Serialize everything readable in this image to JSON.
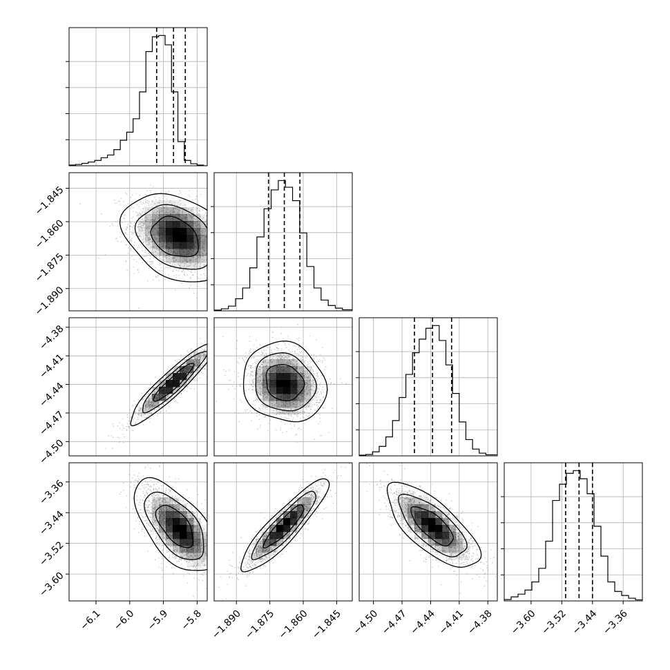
{
  "chart_data": {
    "type": "corner",
    "grid": true,
    "colors": {
      "line": "#000000",
      "grid": "#b0b0b0",
      "points": "#8a8a8a",
      "density": "#000000",
      "contour": "#000000"
    },
    "params": [
      {
        "range": [
          -6.18,
          -5.77
        ],
        "ticks": [
          -6.1,
          -6.0,
          -5.9,
          -5.8
        ],
        "tick_labels": [
          "−6.1",
          "−6.0",
          "−5.9",
          "−5.8"
        ],
        "quantiles": [
          -5.92,
          -5.87,
          -5.835
        ],
        "hist_edges": [
          -6.18,
          -6.161,
          -6.142,
          -6.123,
          -6.104,
          -6.085,
          -6.066,
          -6.047,
          -6.028,
          -6.009,
          -5.99,
          -5.971,
          -5.952,
          -5.933,
          -5.914,
          -5.895,
          -5.876,
          -5.857,
          -5.838,
          -5.819,
          -5.8,
          -5.781,
          -5.77
        ],
        "hist_counts": [
          0.005,
          0.01,
          0.018,
          0.028,
          0.04,
          0.06,
          0.08,
          0.12,
          0.19,
          0.25,
          0.35,
          0.55,
          0.85,
          0.96,
          0.97,
          0.9,
          0.55,
          0.18,
          0.04,
          0.015,
          0.005,
          0.0
        ]
      },
      {
        "range": [
          -1.9,
          -1.838
        ],
        "ticks": [
          -1.89,
          -1.875,
          -1.86,
          -1.845
        ],
        "tick_labels": [
          "−1.890",
          "−1.875",
          "−1.860",
          "−1.845"
        ],
        "quantiles": [
          -1.8756,
          -1.8685,
          -1.8615
        ],
        "hist_edges": [
          -1.9,
          -1.8968,
          -1.8936,
          -1.8904,
          -1.8872,
          -1.884,
          -1.8808,
          -1.8776,
          -1.8744,
          -1.8712,
          -1.868,
          -1.8648,
          -1.8616,
          -1.8584,
          -1.8552,
          -1.852,
          -1.8488,
          -1.8456,
          -1.8424,
          -1.838
        ],
        "hist_counts": [
          0.005,
          0.015,
          0.035,
          0.09,
          0.17,
          0.32,
          0.55,
          0.76,
          0.9,
          0.97,
          0.92,
          0.82,
          0.58,
          0.33,
          0.17,
          0.08,
          0.04,
          0.02,
          0.008
        ]
      },
      {
        "range": [
          -4.515,
          -4.37
        ],
        "ticks": [
          -4.5,
          -4.47,
          -4.44,
          -4.41,
          -4.38
        ],
        "tick_labels": [
          "−4.50",
          "−4.47",
          "−4.44",
          "−4.41",
          "−4.38"
        ],
        "quantiles": [
          -4.457,
          -4.438,
          -4.418
        ],
        "hist_edges": [
          -4.515,
          -4.508,
          -4.501,
          -4.494,
          -4.487,
          -4.48,
          -4.473,
          -4.466,
          -4.459,
          -4.452,
          -4.445,
          -4.438,
          -4.431,
          -4.424,
          -4.417,
          -4.41,
          -4.403,
          -4.396,
          -4.389,
          -4.382,
          -4.37
        ],
        "hist_counts": [
          0.005,
          0.01,
          0.03,
          0.07,
          0.14,
          0.26,
          0.43,
          0.6,
          0.76,
          0.86,
          0.94,
          0.96,
          0.85,
          0.67,
          0.46,
          0.25,
          0.12,
          0.05,
          0.02,
          0.008
        ]
      },
      {
        "range": [
          -3.67,
          -3.31
        ],
        "ticks": [
          -3.6,
          -3.52,
          -3.44,
          -3.36
        ],
        "tick_labels": [
          "−3.60",
          "−3.52",
          "−3.44",
          "−3.36"
        ],
        "quantiles": [
          -3.51,
          -3.475,
          -3.44
        ],
        "hist_edges": [
          -3.67,
          -3.652,
          -3.634,
          -3.616,
          -3.598,
          -3.58,
          -3.562,
          -3.544,
          -3.526,
          -3.508,
          -3.49,
          -3.472,
          -3.454,
          -3.436,
          -3.418,
          -3.4,
          -3.382,
          -3.364,
          -3.346,
          -3.328,
          -3.31
        ],
        "hist_counts": [
          0.01,
          0.03,
          0.05,
          0.08,
          0.14,
          0.24,
          0.44,
          0.74,
          0.86,
          0.94,
          0.96,
          0.9,
          0.79,
          0.55,
          0.33,
          0.14,
          0.07,
          0.04,
          0.02,
          0.008
        ]
      }
    ],
    "pairs": [
      {
        "row": 1,
        "col": 0,
        "mean": [
          -5.865,
          -1.867
        ],
        "sd": [
          0.07,
          0.009
        ],
        "rho": -0.3,
        "mode_offset": [
          0.01,
          0.001
        ]
      },
      {
        "row": 2,
        "col": 0,
        "mean": [
          -5.87,
          -4.438
        ],
        "sd": [
          0.06,
          0.02
        ],
        "rho": 0.93,
        "mode_offset": [
          0.0,
          0.0
        ]
      },
      {
        "row": 2,
        "col": 1,
        "mean": [
          -1.8685,
          -4.438
        ],
        "sd": [
          0.0085,
          0.019
        ],
        "rho": -0.12,
        "mode_offset": [
          0.0,
          -0.002
        ]
      },
      {
        "row": 3,
        "col": 0,
        "mean": [
          -5.865,
          -3.475
        ],
        "sd": [
          0.055,
          0.055
        ],
        "rho": -0.6,
        "mode_offset": [
          0.015,
          -0.01
        ]
      },
      {
        "row": 3,
        "col": 1,
        "mean": [
          -1.8685,
          -3.475
        ],
        "sd": [
          0.009,
          0.055
        ],
        "rho": 0.9,
        "mode_offset": [
          0.0,
          0.0
        ]
      },
      {
        "row": 3,
        "col": 2,
        "mean": [
          -4.438,
          -3.475
        ],
        "sd": [
          0.022,
          0.05
        ],
        "rho": -0.72,
        "mode_offset": [
          0.0,
          0.0
        ]
      }
    ]
  }
}
